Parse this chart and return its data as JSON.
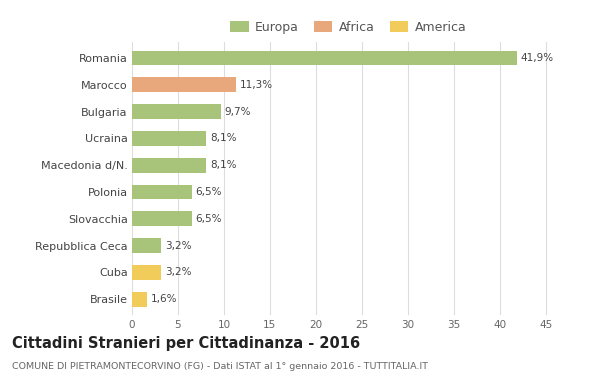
{
  "categories": [
    "Brasile",
    "Cuba",
    "Repubblica Ceca",
    "Slovacchia",
    "Polonia",
    "Macedonia d/N.",
    "Ucraina",
    "Bulgaria",
    "Marocco",
    "Romania"
  ],
  "values": [
    1.6,
    3.2,
    3.2,
    6.5,
    6.5,
    8.1,
    8.1,
    9.7,
    11.3,
    41.9
  ],
  "labels": [
    "1,6%",
    "3,2%",
    "3,2%",
    "6,5%",
    "6,5%",
    "8,1%",
    "8,1%",
    "9,7%",
    "11,3%",
    "41,9%"
  ],
  "colors": [
    "#f2cc5a",
    "#f2cc5a",
    "#a8c47a",
    "#a8c47a",
    "#a8c47a",
    "#a8c47a",
    "#a8c47a",
    "#a8c47a",
    "#e8a87c",
    "#a8c47a"
  ],
  "legend": [
    {
      "label": "Europa",
      "color": "#a8c47a"
    },
    {
      "label": "Africa",
      "color": "#e8a87c"
    },
    {
      "label": "America",
      "color": "#f2cc5a"
    }
  ],
  "title": "Cittadini Stranieri per Cittadinanza - 2016",
  "subtitle": "COMUNE DI PIETRAMONTECORVINO (FG) - Dati ISTAT al 1° gennaio 2016 - TUTTITALIA.IT",
  "xlim": [
    0,
    47
  ],
  "xticks": [
    0,
    5,
    10,
    15,
    20,
    25,
    30,
    35,
    40,
    45
  ],
  "background_color": "#ffffff",
  "grid_color": "#dddddd",
  "bar_height": 0.55
}
